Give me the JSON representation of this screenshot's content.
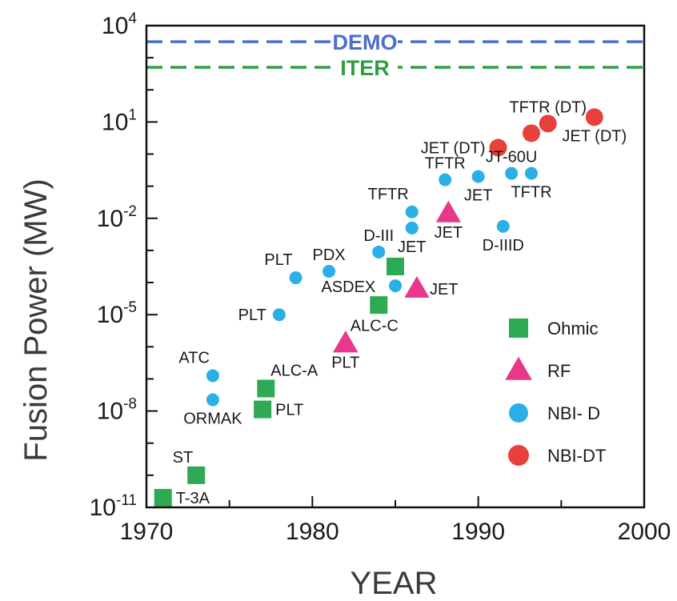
{
  "chart_data": {
    "type": "scatter",
    "title": "",
    "xlabel": "YEAR",
    "ylabel": "Fusion Power (MW)",
    "xlim": [
      1970,
      2000
    ],
    "ylim_log10": [
      -11,
      4
    ],
    "y_scale": "log",
    "grid": false,
    "legend_position": "bottom-right",
    "x_ticks": [
      {
        "value": 1970,
        "label": "1970"
      },
      {
        "value": 1980,
        "label": "1980"
      },
      {
        "value": 1990,
        "label": "1990"
      },
      {
        "value": 2000,
        "label": "2000"
      }
    ],
    "y_ticks": [
      {
        "exp": 4,
        "base": "10",
        "sup": "4"
      },
      {
        "exp": 1,
        "base": "10",
        "sup": "1"
      },
      {
        "exp": -2,
        "base": "10",
        "sup": "-2"
      },
      {
        "exp": -5,
        "base": "10",
        "sup": "-5"
      },
      {
        "exp": -8,
        "base": "10",
        "sup": "-8"
      },
      {
        "exp": -11,
        "base": "10",
        "sup": "-11"
      }
    ],
    "reference_lines": [
      {
        "name": "DEMO",
        "log10_value": 3.5,
        "color": "#4a6fd0"
      },
      {
        "name": "ITER",
        "log10_value": 2.7,
        "color": "#2e9e43"
      }
    ],
    "series": [
      {
        "name": "Ohmic",
        "marker": "square",
        "color": "#2eaa55",
        "points": [
          {
            "x": 1971.0,
            "log10_y": -10.7,
            "label": "T-3A",
            "label_pos": "right"
          },
          {
            "x": 1973.0,
            "log10_y": -10.0,
            "label": "ST",
            "label_pos": "top-left"
          },
          {
            "x": 1977.0,
            "log10_y": -7.95,
            "label": "PLT",
            "label_pos": "right"
          },
          {
            "x": 1977.2,
            "log10_y": -7.3,
            "label": "ALC-A",
            "label_pos": "top-right"
          },
          {
            "x": 1984.0,
            "log10_y": -4.7,
            "label": "ASDEX",
            "label_pos": "top-left"
          },
          {
            "x": 1985.0,
            "log10_y": -3.5,
            "label": "",
            "label_pos": "none"
          }
        ]
      },
      {
        "name": "RF",
        "marker": "triangle",
        "color": "#e8388a",
        "points": [
          {
            "x": 1982.0,
            "log10_y": -5.9,
            "label": "ALC-C",
            "label_pos": "top-right"
          },
          {
            "x": 1982.0,
            "log10_y": -5.9,
            "label": "PLT",
            "label_pos": "below"
          },
          {
            "x": 1986.3,
            "log10_y": -4.2,
            "label": "JET",
            "label_pos": "right"
          },
          {
            "x": 1988.2,
            "log10_y": -1.85,
            "label": "JET",
            "label_pos": "below"
          }
        ]
      },
      {
        "name": "NBI- D",
        "marker": "circle",
        "color": "#2ab0e6",
        "points": [
          {
            "x": 1974.0,
            "log10_y": -6.9,
            "label": "ATC",
            "label_pos": "top-left"
          },
          {
            "x": 1974.0,
            "log10_y": -7.65,
            "label": "ORMAK",
            "label_pos": "below"
          },
          {
            "x": 1978.0,
            "log10_y": -5.0,
            "label": "PLT",
            "label_pos": "left"
          },
          {
            "x": 1979.0,
            "log10_y": -3.85,
            "label": "PLT",
            "label_pos": "top-left"
          },
          {
            "x": 1981.0,
            "log10_y": -3.65,
            "label": "PDX",
            "label_pos": "top"
          },
          {
            "x": 1984.0,
            "log10_y": -3.05,
            "label": "D-III",
            "label_pos": "top"
          },
          {
            "x": 1985.0,
            "log10_y": -4.1,
            "label": "",
            "label_pos": "none"
          },
          {
            "x": 1986.0,
            "log10_y": -1.8,
            "label": "TFTR",
            "label_pos": "top-left"
          },
          {
            "x": 1986.0,
            "log10_y": -2.3,
            "label": "JET",
            "label_pos": "below"
          },
          {
            "x": 1988.0,
            "log10_y": -0.8,
            "label": "TFTR",
            "label_pos": "top"
          },
          {
            "x": 1990.0,
            "log10_y": -0.7,
            "label": "JET",
            "label_pos": "below"
          },
          {
            "x": 1992.0,
            "log10_y": -0.6,
            "label": "JT-60U",
            "label_pos": "top"
          },
          {
            "x": 1993.2,
            "log10_y": -0.6,
            "label": "TFTR",
            "label_pos": "below"
          },
          {
            "x": 1991.5,
            "log10_y": -2.25,
            "label": "D-IIID",
            "label_pos": "below"
          }
        ]
      },
      {
        "name": "NBI-DT",
        "marker": "circle",
        "color": "#e8403a",
        "points": [
          {
            "x": 1991.2,
            "log10_y": 0.2,
            "label": "JET (DT)",
            "label_pos": "left"
          },
          {
            "x": 1993.2,
            "log10_y": 0.65,
            "label": "",
            "label_pos": "none"
          },
          {
            "x": 1994.2,
            "log10_y": 0.95,
            "label": "TFTR (DT)",
            "label_pos": "top"
          },
          {
            "x": 1997.0,
            "log10_y": 1.15,
            "label": "JET (DT)",
            "label_pos": "below"
          }
        ]
      }
    ]
  }
}
